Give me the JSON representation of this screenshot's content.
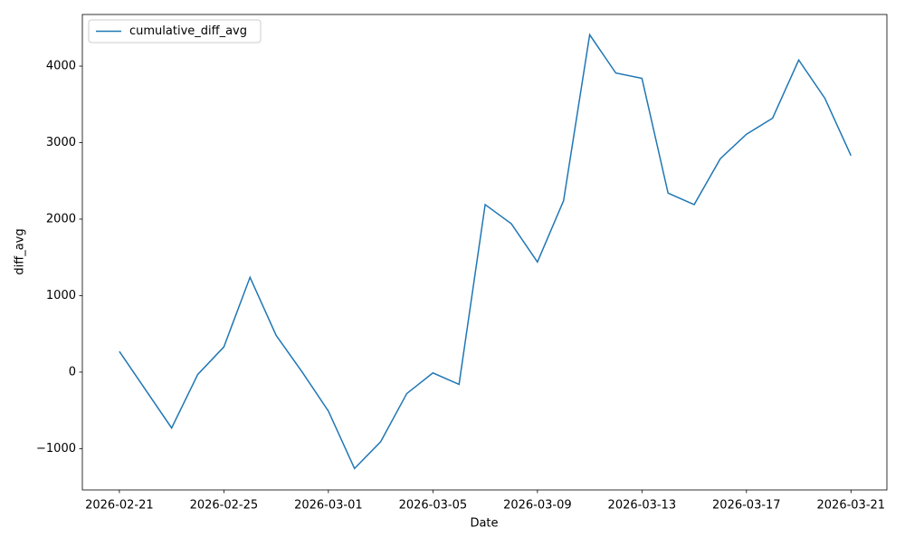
{
  "chart_data": {
    "type": "line",
    "x": [
      "2026-02-21",
      "2026-02-22",
      "2026-02-23",
      "2026-02-24",
      "2026-02-25",
      "2026-02-26",
      "2026-02-27",
      "2026-02-28",
      "2026-03-01",
      "2026-03-02",
      "2026-03-03",
      "2026-03-04",
      "2026-03-05",
      "2026-03-06",
      "2026-03-07",
      "2026-03-08",
      "2026-03-09",
      "2026-03-10",
      "2026-03-11",
      "2026-03-12",
      "2026-03-13",
      "2026-03-14",
      "2026-03-15",
      "2026-03-16",
      "2026-03-17",
      "2026-03-18",
      "2026-03-19",
      "2026-03-20",
      "2026-03-21"
    ],
    "series": [
      {
        "name": "cumulative_diff_avg",
        "color": "#1f77b4",
        "values": [
          270,
          -230,
          -730,
          -30,
          330,
          1240,
          480,
          0,
          -510,
          -1260,
          -910,
          -280,
          -10,
          -160,
          2190,
          1940,
          1440,
          2240,
          4410,
          3910,
          3840,
          2340,
          2190,
          2790,
          3110,
          3320,
          4080,
          3580,
          2830
        ]
      }
    ],
    "xlabel": "Date",
    "ylabel": "diff_avg",
    "xlim": [
      "2026-02-19T14:00",
      "2026-03-22T09:00"
    ],
    "xticks": [
      "2026-02-21",
      "2026-02-25",
      "2026-03-01",
      "2026-03-05",
      "2026-03-09",
      "2026-03-13",
      "2026-03-17",
      "2026-03-21"
    ],
    "ylim": [
      -1540,
      4675
    ],
    "yticks": [
      {
        "value": -1000,
        "label": "−1000"
      },
      0,
      1000,
      2000,
      3000,
      4000
    ],
    "grid": false,
    "legend": "upper-left"
  }
}
